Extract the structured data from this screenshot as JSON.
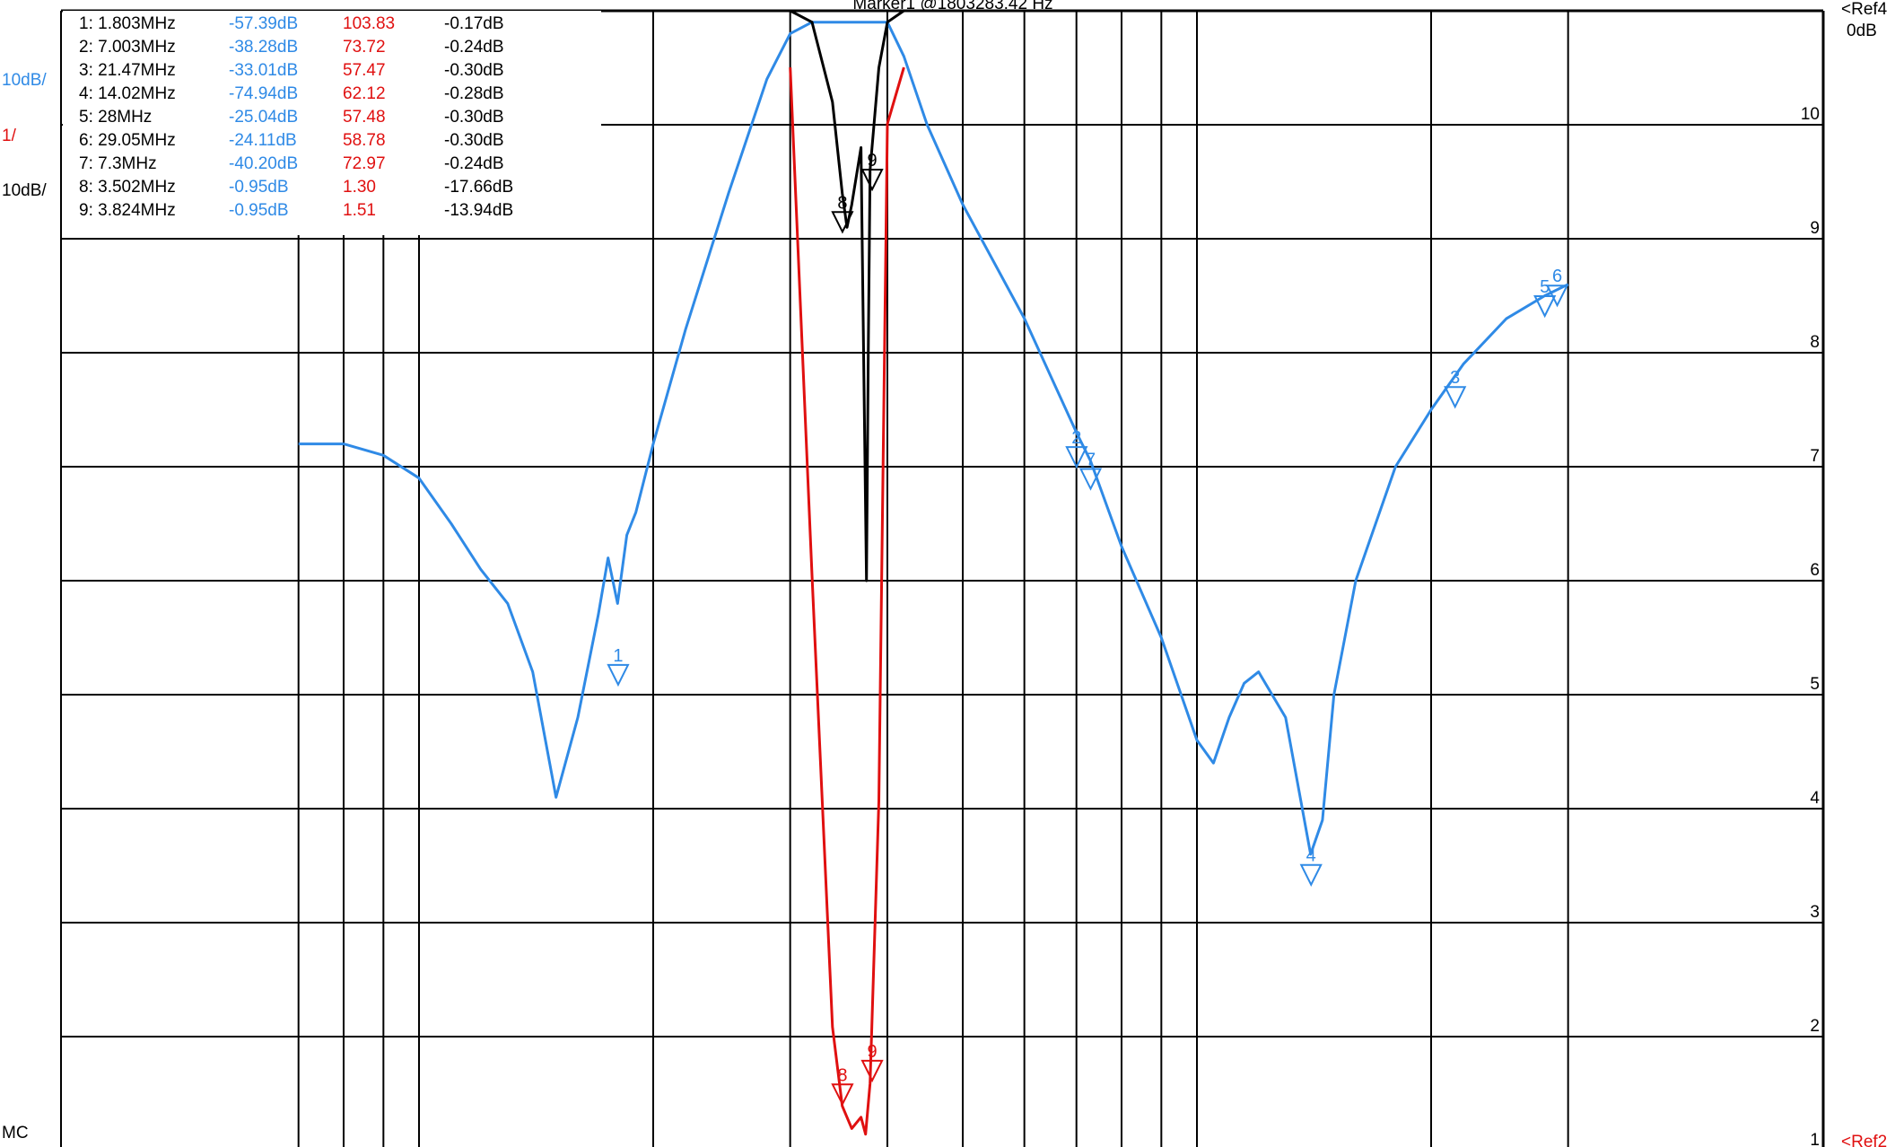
{
  "left_labels": {
    "scale_blue": "10dB/",
    "scale_red": "1/",
    "scale_black": "10dB/",
    "mode": "MC"
  },
  "right_labels": {
    "ref_top": "<Ref4",
    "ref_top_value": "0dB",
    "ref_bottom": "<Ref2"
  },
  "header_text": "Marker1 @1803283.42 Hz",
  "marker_table": {
    "rows": [
      {
        "name": "1: 1.803MHz",
        "blue": "-57.39dB",
        "red": "103.83",
        "black": "-0.17dB"
      },
      {
        "name": "2: 7.003MHz",
        "blue": "-38.28dB",
        "red": "73.72",
        "black": "-0.24dB"
      },
      {
        "name": "3: 21.47MHz",
        "blue": "-33.01dB",
        "red": "57.47",
        "black": "-0.30dB"
      },
      {
        "name": "4: 14.02MHz",
        "blue": "-74.94dB",
        "red": "62.12",
        "black": "-0.28dB"
      },
      {
        "name": "5: 28MHz",
        "blue": "-25.04dB",
        "red": "57.48",
        "black": "-0.30dB"
      },
      {
        "name": "6: 29.05MHz",
        "blue": "-24.11dB",
        "red": "58.78",
        "black": "-0.30dB"
      },
      {
        "name": "7: 7.3MHz",
        "blue": "-40.20dB",
        "red": "72.97",
        "black": "-0.24dB"
      },
      {
        "name": "8: 3.502MHz",
        "blue": "-0.95dB",
        "red": "1.30",
        "black": "-17.66dB"
      },
      {
        "name": "9: 3.824MHz",
        "blue": "-0.95dB",
        "red": "1.51",
        "black": "-13.94dB"
      }
    ]
  },
  "chart_data": {
    "type": "line",
    "y_tick_labels": [
      "10",
      "9",
      "8",
      "7",
      "6",
      "5",
      "4",
      "3",
      "2",
      "1"
    ],
    "colors": {
      "blue": "#2f8ae6",
      "red": "#e01010",
      "black": "#000000",
      "grid": "#000000"
    },
    "x_log_decade_gridlines_MHz": [
      0.7,
      0.8,
      0.9,
      1,
      2,
      3,
      4,
      5,
      6,
      7,
      8,
      9,
      10,
      20,
      30
    ],
    "series": [
      {
        "key": "blue",
        "x_MHz": [
          0.7,
          0.8,
          0.9,
          1.0,
          1.1,
          1.2,
          1.3,
          1.4,
          1.5,
          1.6,
          1.7,
          1.75,
          1.8,
          1.85,
          1.9,
          2.0,
          2.2,
          2.5,
          2.8,
          3.0,
          3.2,
          3.4,
          3.5,
          3.6,
          3.7,
          3.8,
          3.9,
          4.0,
          4.2,
          4.5,
          5.0,
          6.0,
          7.0,
          7.3,
          8.0,
          9.0,
          10.0,
          10.5,
          11.0,
          11.5,
          12.0,
          13.0,
          14.0,
          14.5,
          15.0,
          16.0,
          18.0,
          20.0,
          22.0,
          25.0,
          28.0,
          30.0
        ],
        "y_db": [
          -38,
          -38,
          -39,
          -41,
          -45,
          -49,
          -52,
          -58,
          -69,
          -62,
          -53,
          -48,
          -52,
          -46,
          -44,
          -38,
          -28,
          -16,
          -6,
          -2,
          -1,
          -1,
          -1,
          -1,
          -1,
          -1,
          -1,
          -1,
          -4,
          -10,
          -17,
          -27,
          -37,
          -39.5,
          -47,
          -55,
          -64,
          -66,
          -62,
          -59,
          -58,
          -62,
          -74,
          -71,
          -60,
          -50,
          -40,
          -35,
          -31,
          -27,
          -25,
          -24
        ]
      },
      {
        "key": "red",
        "x_MHz": [
          3.0,
          3.2,
          3.4,
          3.5,
          3.6,
          3.7,
          3.75,
          3.8,
          3.9,
          4.0,
          4.2
        ],
        "y_swr": [
          10.5,
          6,
          2,
          1.3,
          1.1,
          1.2,
          1.05,
          1.5,
          4,
          10,
          10.5
        ]
      },
      {
        "key": "black",
        "x_MHz": [
          3.0,
          3.2,
          3.4,
          3.5,
          3.55,
          3.6,
          3.7,
          3.76,
          3.78,
          3.8,
          3.9,
          4.0,
          4.2
        ],
        "y_db": [
          0,
          -1,
          -8,
          -16,
          -19,
          -17,
          -12,
          -50,
          -30,
          -14,
          -5,
          -1,
          0
        ]
      }
    ],
    "markers_blue": [
      {
        "id": "1",
        "x_MHz": 1.803,
        "y_db": -57.39
      },
      {
        "id": "2",
        "x_MHz": 7.003,
        "y_db": -38.28
      },
      {
        "id": "7",
        "x_MHz": 7.3,
        "y_db": -40.2
      },
      {
        "id": "4",
        "x_MHz": 14.02,
        "y_db": -74.94
      },
      {
        "id": "3",
        "x_MHz": 21.47,
        "y_db": -33.01
      },
      {
        "id": "5",
        "x_MHz": 28.0,
        "y_db": -25.04
      },
      {
        "id": "6",
        "x_MHz": 29.05,
        "y_db": -24.11
      }
    ],
    "markers_black": [
      {
        "id": "8",
        "x_MHz": 3.502,
        "y_db": -17.66
      },
      {
        "id": "9",
        "x_MHz": 3.824,
        "y_db": -13.94
      }
    ],
    "markers_red": [
      {
        "id": "8",
        "x_MHz": 3.502,
        "y_swr": 1.3
      },
      {
        "id": "9",
        "x_MHz": 3.824,
        "y_swr": 1.51
      }
    ]
  }
}
